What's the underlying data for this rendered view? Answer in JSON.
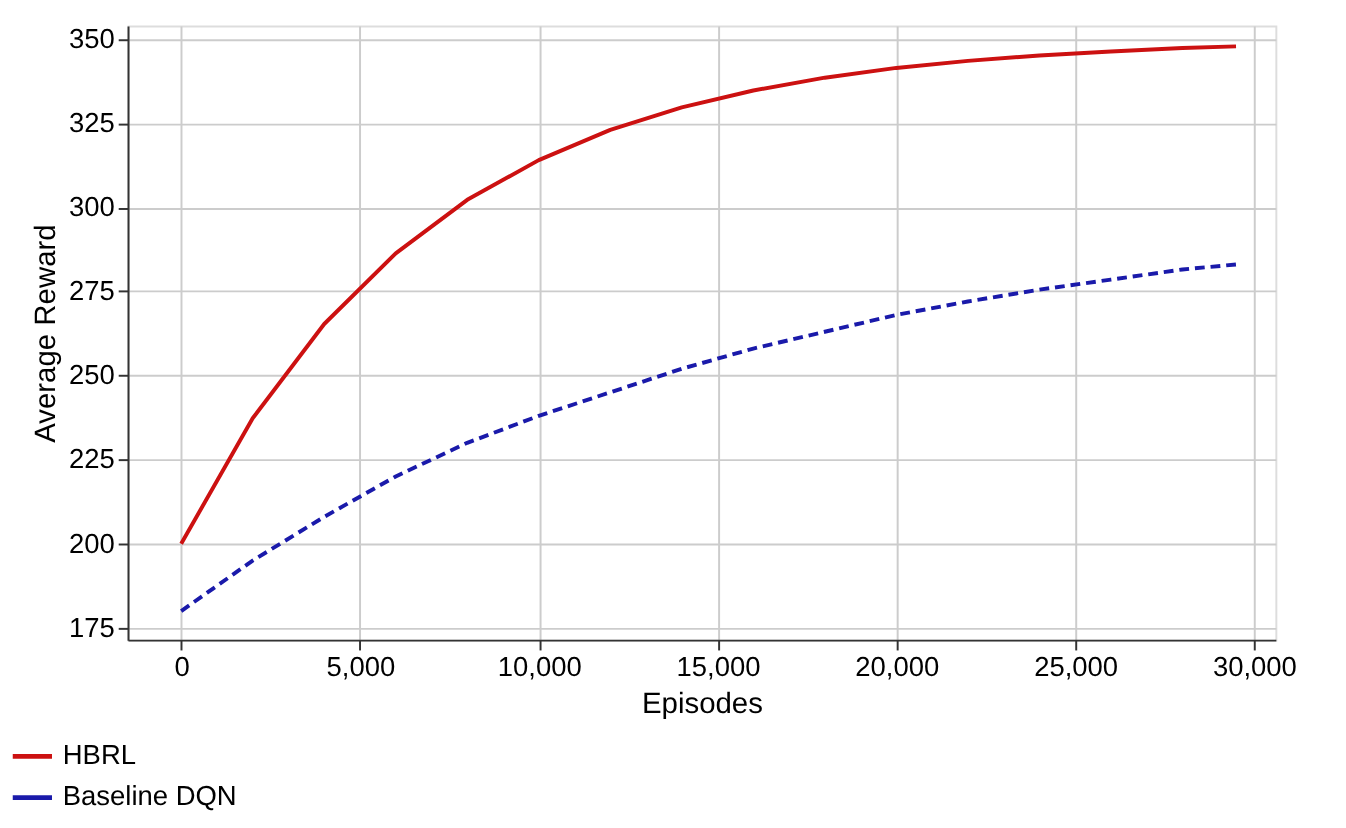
{
  "chart_data": {
    "type": "line",
    "xlabel": "Episodes",
    "ylabel": "Average Reward",
    "x": [
      0,
      2000,
      4000,
      6000,
      8000,
      10000,
      12000,
      14000,
      16000,
      18000,
      20000,
      22000,
      24000,
      26000,
      28000,
      29500
    ],
    "series": [
      {
        "name": "HBRL",
        "color": "#cc1111",
        "line_style": "solid",
        "values": [
          200,
          237.3,
          265.3,
          286.3,
          302.2,
          314.0,
          323.0,
          329.7,
          334.7,
          338.5,
          341.4,
          343.5,
          345.1,
          346.3,
          347.3,
          347.8
        ]
      },
      {
        "name": "Baseline DQN",
        "color": "#1a1aaa",
        "line_style": "dashed",
        "values": [
          180,
          195,
          208,
          220,
          230,
          238,
          245,
          252,
          258,
          263,
          268,
          272,
          275.5,
          278.5,
          281.5,
          283
        ]
      }
    ],
    "xlim": [
      -1500,
      30600
    ],
    "xticks": [
      {
        "value": 0,
        "label": "0"
      },
      {
        "value": 5000,
        "label": "5,000"
      },
      {
        "value": 10000,
        "label": "10,000"
      },
      {
        "value": 15000,
        "label": "15,000"
      },
      {
        "value": 20000,
        "label": "20,000"
      },
      {
        "value": 25000,
        "label": "25,000"
      },
      {
        "value": 30000,
        "label": "30,000"
      }
    ],
    "ylim": [
      171.5,
      354
    ],
    "yticks": [
      175,
      200,
      225,
      250,
      275,
      300,
      325,
      350
    ],
    "grid": true,
    "legend": "bottom left",
    "marker": "none"
  }
}
